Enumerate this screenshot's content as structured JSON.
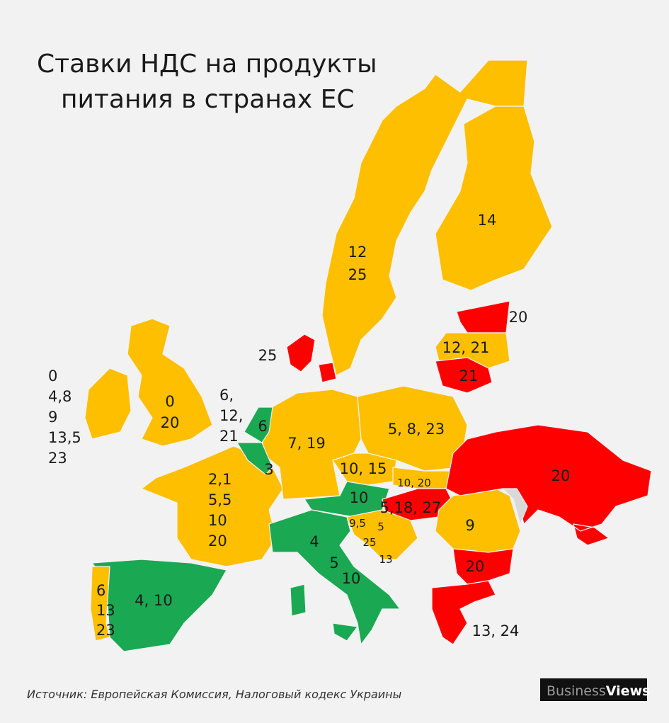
{
  "title": [
    "Ставки НДС на продукты",
    "питания в странах ЕС"
  ],
  "labels": [
    [
      "14"
    ],
    [
      "12",
      "25"
    ],
    [
      "20"
    ],
    [
      "12, 21"
    ],
    [
      "21"
    ],
    [
      "25"
    ],
    [
      "0",
      "4,8",
      "9",
      "13,5",
      "23"
    ],
    [
      "0",
      "20"
    ],
    [
      "6,",
      "12,",
      "21"
    ],
    [
      "6"
    ],
    [
      "3"
    ],
    [
      "7, 19"
    ],
    [
      "5, 8, 23"
    ],
    [
      "10, 15"
    ],
    [
      "10, 20"
    ],
    [
      "10"
    ],
    [
      "5,18, 27"
    ],
    [
      "9,5"
    ],
    [
      "5"
    ],
    [
      "25"
    ],
    [
      "13"
    ],
    [
      "20"
    ],
    [
      "9"
    ],
    [
      "20"
    ],
    [
      "13, 24"
    ],
    [
      "2,1",
      "5,5",
      "10",
      "20"
    ],
    [
      "4"
    ],
    [
      "5"
    ],
    [
      "10"
    ],
    [
      "4, 10"
    ],
    [
      "6",
      "13",
      "23"
    ]
  ],
  "source": "Источник: Европейская Комиссия, Налоговый кодекс Украины",
  "logo": {
    "business": "Business",
    "views": "Views"
  }
}
